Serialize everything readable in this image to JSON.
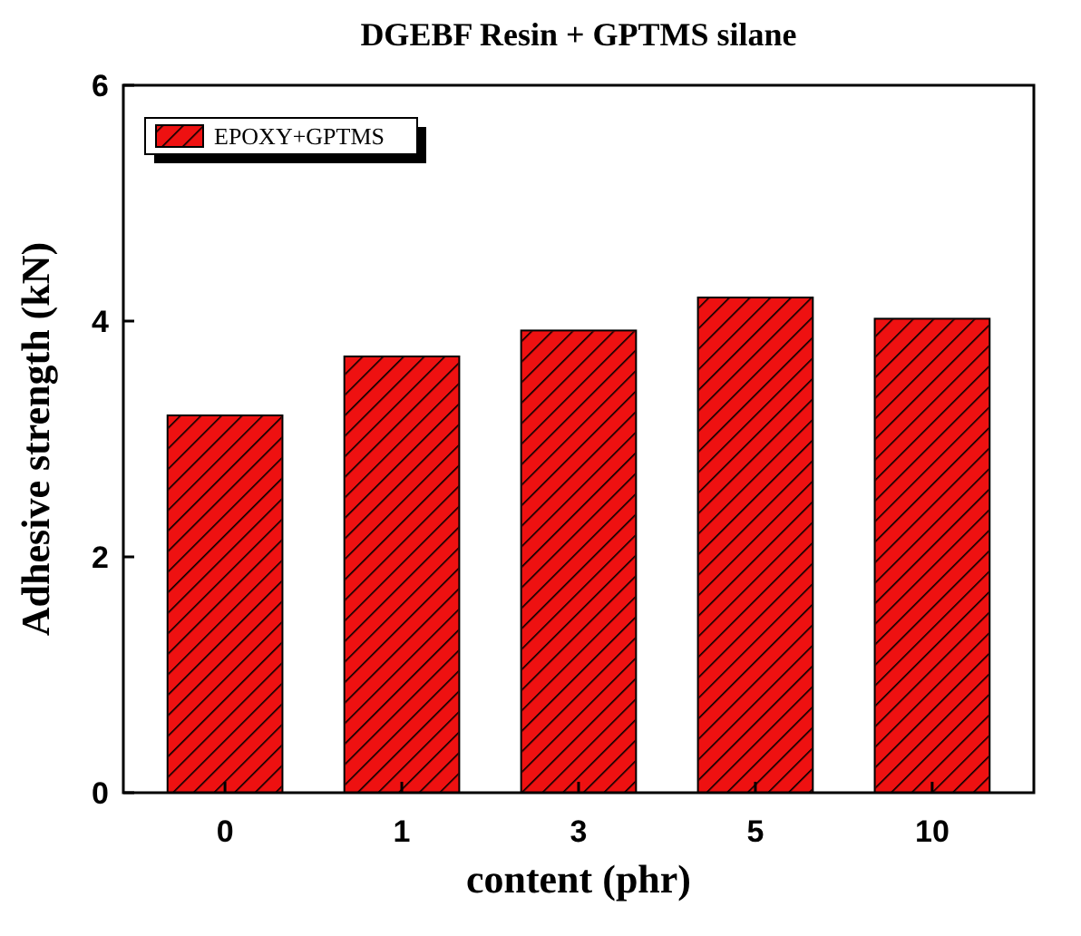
{
  "chart_data": {
    "type": "bar",
    "title": "DGEBF Resin + GPTMS silane",
    "xlabel": "content (phr)",
    "ylabel": "Adhesive strength (kN)",
    "categories": [
      "0",
      "1",
      "3",
      "5",
      "10"
    ],
    "series": [
      {
        "name": "EPOXY+GPTMS",
        "color": "#ee1111",
        "values": [
          3.2,
          3.7,
          3.92,
          4.2,
          4.02
        ]
      }
    ],
    "ylim": [
      0,
      6
    ],
    "yticks": [
      0,
      2,
      4,
      6
    ],
    "legend": "top left",
    "grid": false
  }
}
